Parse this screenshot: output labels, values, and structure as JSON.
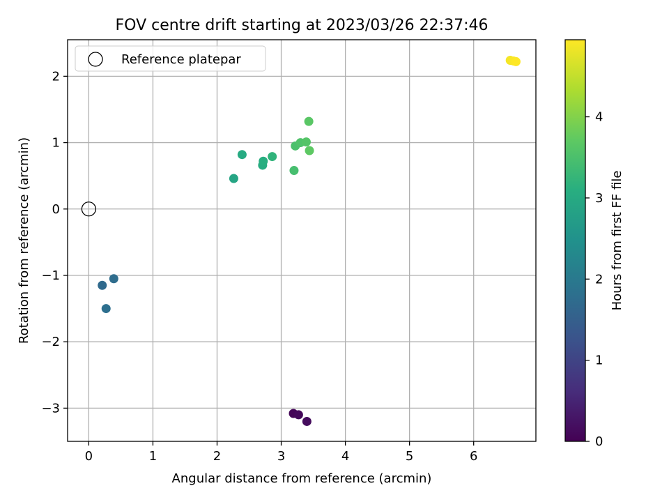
{
  "chart_data": {
    "type": "scatter",
    "title": "FOV centre drift starting at 2023/03/26 22:37:46",
    "xlabel": "Angular distance from reference (arcmin)",
    "ylabel": "Rotation from reference (arcmin)",
    "xlim": [
      -0.33,
      6.97
    ],
    "ylim": [
      -3.5,
      2.55
    ],
    "xticks": [
      0,
      1,
      2,
      3,
      4,
      5,
      6
    ],
    "yticks": [
      -3,
      -2,
      -1,
      0,
      1,
      2
    ],
    "ytick_labels": [
      "−3",
      "−2",
      "−1",
      "0",
      "1",
      "2"
    ],
    "grid": true,
    "legend": {
      "placement": "top-left",
      "entries": [
        "Reference platepar"
      ]
    },
    "reference_point": {
      "x": 0,
      "y": 0,
      "marker": "open-circle"
    },
    "colorbar": {
      "label": "Hours from first FF file",
      "range": [
        0,
        4.95
      ],
      "ticks": [
        0,
        1,
        2,
        3,
        4
      ],
      "colormap": "viridis"
    },
    "series": [
      {
        "x": [
          3.19,
          3.27,
          3.4,
          0.21,
          0.39,
          0.27,
          2.26,
          2.39,
          2.71,
          2.72,
          2.86,
          3.2,
          3.22,
          3.3,
          3.39,
          3.43,
          3.44,
          6.57,
          6.62,
          6.66
        ],
        "y": [
          -3.08,
          -3.1,
          -3.2,
          -1.15,
          -1.05,
          -1.5,
          0.46,
          0.82,
          0.66,
          0.72,
          0.79,
          0.58,
          0.95,
          1.0,
          1.01,
          1.32,
          0.88,
          2.24,
          2.23,
          2.22
        ],
        "hours": [
          0.05,
          0.1,
          0.15,
          1.7,
          1.75,
          1.8,
          2.9,
          3.0,
          3.05,
          3.1,
          3.2,
          3.45,
          3.5,
          3.55,
          3.6,
          3.65,
          3.7,
          4.88,
          4.92,
          4.95
        ]
      }
    ]
  }
}
